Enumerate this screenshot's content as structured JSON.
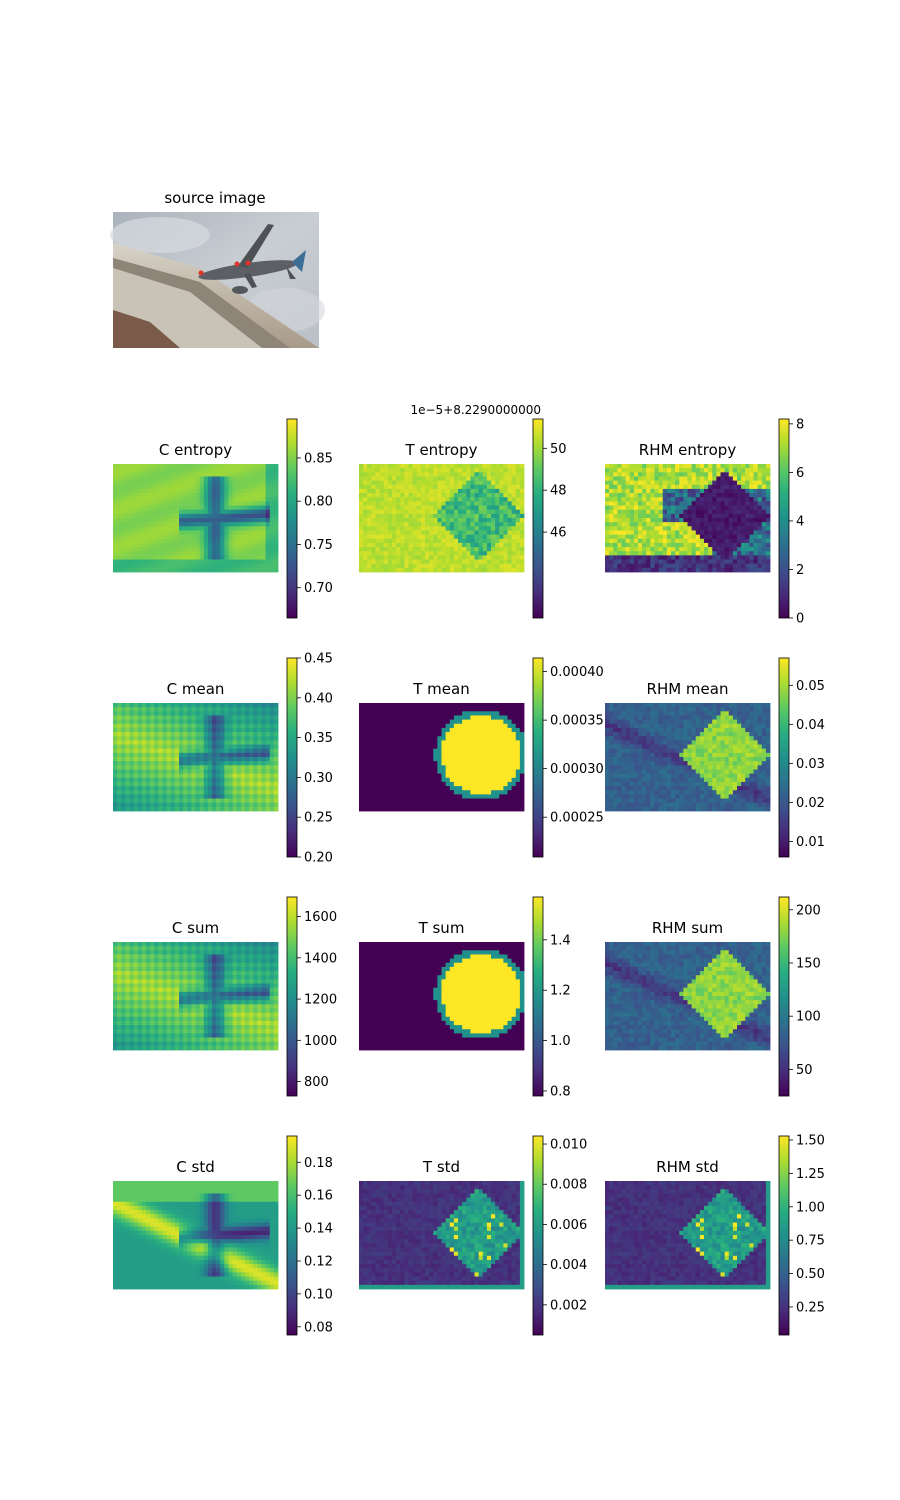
{
  "figure": {
    "source_title": "source image"
  },
  "chart_data": [
    {
      "type": "heatmap",
      "title": "C entropy",
      "colormap": "viridis",
      "vmin": 0.665,
      "vmax": 0.895,
      "ticks": [
        "0.70",
        "0.75",
        "0.80",
        "0.85"
      ],
      "tick_values": [
        0.7,
        0.75,
        0.8,
        0.85
      ],
      "pattern": "c_entropy"
    },
    {
      "type": "heatmap",
      "title": "T entropy",
      "colormap": "viridis",
      "offset_label": "1e−5+8.2290000000",
      "vmin": 41.9,
      "vmax": 51.4,
      "ticks": [
        "46",
        "48",
        "50"
      ],
      "tick_values": [
        46,
        48,
        50
      ],
      "pattern": "t_entropy"
    },
    {
      "type": "heatmap",
      "title": "RHM entropy",
      "colormap": "viridis",
      "vmin": 0,
      "vmax": 8.2,
      "ticks": [
        "0",
        "2",
        "4",
        "6",
        "8"
      ],
      "tick_values": [
        0,
        2,
        4,
        6,
        8
      ],
      "pattern": "rhm_entropy"
    },
    {
      "type": "heatmap",
      "title": "C mean",
      "colormap": "viridis",
      "vmin": 0.2,
      "vmax": 0.45,
      "ticks": [
        "0.20",
        "0.25",
        "0.30",
        "0.35",
        "0.40",
        "0.45"
      ],
      "tick_values": [
        0.2,
        0.25,
        0.3,
        0.35,
        0.4,
        0.45
      ],
      "pattern": "c_texture"
    },
    {
      "type": "heatmap",
      "title": "T mean",
      "colormap": "viridis",
      "vmin": 0.000209,
      "vmax": 0.000414,
      "ticks": [
        "0.00025",
        "0.00030",
        "0.00035",
        "0.00040"
      ],
      "tick_values": [
        0.00025,
        0.0003,
        0.00035,
        0.0004
      ],
      "pattern": "t_blob"
    },
    {
      "type": "heatmap",
      "title": "RHM mean",
      "colormap": "viridis",
      "vmin": 0.006,
      "vmax": 0.057,
      "ticks": [
        "0.01",
        "0.02",
        "0.03",
        "0.04",
        "0.05"
      ],
      "tick_values": [
        0.01,
        0.02,
        0.03,
        0.04,
        0.05
      ],
      "pattern": "rhm_plane"
    },
    {
      "type": "heatmap",
      "title": "C sum",
      "colormap": "viridis",
      "vmin": 730,
      "vmax": 1695,
      "ticks": [
        "800",
        "1000",
        "1200",
        "1400",
        "1600"
      ],
      "tick_values": [
        800,
        1000,
        1200,
        1400,
        1600
      ],
      "pattern": "c_texture"
    },
    {
      "type": "heatmap",
      "title": "T sum",
      "colormap": "viridis",
      "vmin": 0.78,
      "vmax": 1.57,
      "ticks": [
        "0.8",
        "1.0",
        "1.2",
        "1.4"
      ],
      "tick_values": [
        0.8,
        1.0,
        1.2,
        1.4
      ],
      "pattern": "t_blob"
    },
    {
      "type": "heatmap",
      "title": "RHM sum",
      "colormap": "viridis",
      "vmin": 25,
      "vmax": 212,
      "ticks": [
        "50",
        "100",
        "150",
        "200"
      ],
      "tick_values": [
        50,
        100,
        150,
        200
      ],
      "pattern": "rhm_plane"
    },
    {
      "type": "heatmap",
      "title": "C std",
      "colormap": "viridis",
      "vmin": 0.075,
      "vmax": 0.196,
      "ticks": [
        "0.08",
        "0.10",
        "0.12",
        "0.14",
        "0.16",
        "0.18"
      ],
      "tick_values": [
        0.08,
        0.1,
        0.12,
        0.14,
        0.16,
        0.18
      ],
      "pattern": "c_std"
    },
    {
      "type": "heatmap",
      "title": "T std",
      "colormap": "viridis",
      "vmin": 0.0005,
      "vmax": 0.0104,
      "ticks": [
        "0.002",
        "0.004",
        "0.006",
        "0.008",
        "0.010"
      ],
      "tick_values": [
        0.002,
        0.004,
        0.006,
        0.008,
        0.01
      ],
      "pattern": "std_plane"
    },
    {
      "type": "heatmap",
      "title": "RHM std",
      "colormap": "viridis",
      "vmin": 0.04,
      "vmax": 1.53,
      "ticks": [
        "0.25",
        "0.50",
        "0.75",
        "1.00",
        "1.25",
        "1.50"
      ],
      "tick_values": [
        0.25,
        0.5,
        0.75,
        1.0,
        1.25,
        1.5
      ],
      "pattern": "std_plane"
    }
  ]
}
